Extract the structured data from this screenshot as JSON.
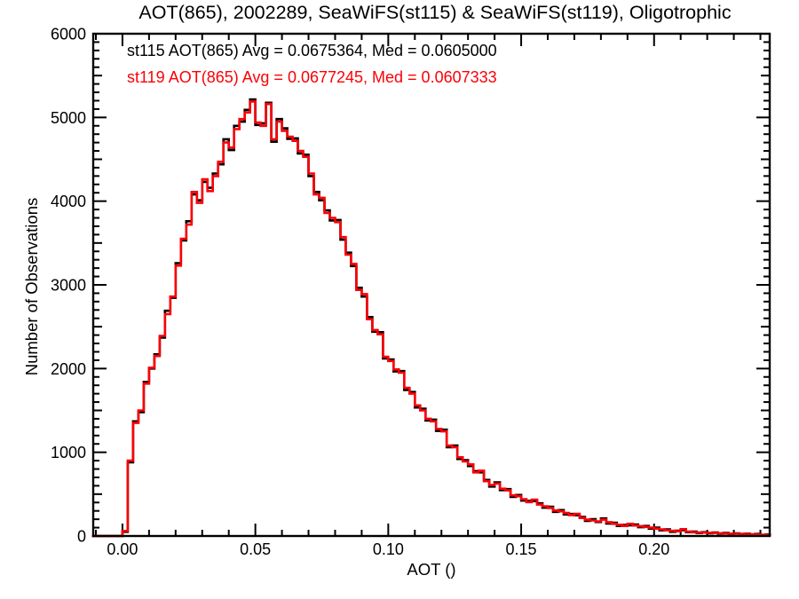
{
  "window": {
    "background": "#ffffff"
  },
  "chart_data": {
    "type": "line",
    "style": "step-histogram",
    "title": "AOT(865), 2002289, SeaWiFS(st115) & SeaWiFS(st119), Oligotrophic",
    "xlabel": "AOT ()",
    "ylabel": "Number of Observations",
    "xlim": [
      -0.011,
      0.2435
    ],
    "ylim": [
      0,
      6000
    ],
    "grid": false,
    "legend_position": "top-left-inside",
    "x_tick_values": [
      0.0,
      0.05,
      0.1,
      0.15,
      0.2
    ],
    "x_tick_labels": [
      "0.00",
      "0.05",
      "0.10",
      "0.15",
      "0.20"
    ],
    "x_minor_step": 0.01,
    "y_tick_values": [
      0,
      1000,
      2000,
      3000,
      4000,
      5000,
      6000
    ],
    "y_tick_labels": [
      "0",
      "1000",
      "2000",
      "3000",
      "4000",
      "5000",
      "6000"
    ],
    "y_minor_step": 100,
    "bin_start": -0.012,
    "bin_width": 0.002,
    "series": [
      {
        "name": "st115",
        "color": "#000000",
        "legend": "st115 AOT(865) Avg = 0.0675364, Med = 0.0605000",
        "avg": 0.0675364,
        "med": 0.0605,
        "values": [
          0,
          0,
          0,
          0,
          0,
          0,
          50,
          880,
          1370,
          1480,
          1840,
          2000,
          2170,
          2370,
          2690,
          2845,
          3260,
          3530,
          3760,
          4080,
          4010,
          4230,
          4160,
          4330,
          4440,
          4740,
          4610,
          4900,
          4950,
          5090,
          5215,
          4910,
          4930,
          5175,
          4710,
          4980,
          4870,
          4745,
          4750,
          4570,
          4555,
          4300,
          4110,
          4010,
          3890,
          3770,
          3775,
          3540,
          3385,
          3225,
          2965,
          2860,
          2615,
          2440,
          2435,
          2120,
          2110,
          1965,
          1970,
          1745,
          1720,
          1535,
          1520,
          1380,
          1390,
          1255,
          1270,
          1060,
          1080,
          920,
          905,
          835,
          775,
          760,
          670,
          590,
          640,
          548,
          560,
          468,
          490,
          423,
          420,
          418,
          390,
          338,
          350,
          288,
          310,
          258,
          263,
          248,
          228,
          180,
          200,
          168,
          210,
          148,
          158,
          120,
          133,
          128,
          138,
          105,
          120,
          88,
          100,
          68,
          80,
          50,
          64,
          70,
          46,
          52,
          36,
          46,
          32,
          42,
          28,
          36,
          24,
          32,
          20,
          28,
          16,
          24,
          12,
          18
        ]
      },
      {
        "name": "st119",
        "color": "#fb0006",
        "legend": "st119 AOT(865) Avg = 0.0677245, Med = 0.0607333",
        "avg": 0.0677245,
        "med": 0.0607333,
        "values": [
          0,
          0,
          0,
          0,
          0,
          0,
          60,
          900,
          1350,
          1500,
          1820,
          2010,
          2150,
          2390,
          2650,
          2860,
          3230,
          3550,
          3720,
          4110,
          3980,
          4260,
          4120,
          4300,
          4470,
          4700,
          4640,
          4860,
          4980,
          5060,
          5190,
          4940,
          4900,
          5160,
          4740,
          4950,
          4840,
          4770,
          4720,
          4600,
          4530,
          4330,
          4080,
          4040,
          3860,
          3800,
          3750,
          3570,
          3360,
          3250,
          2940,
          2890,
          2590,
          2460,
          2410,
          2140,
          2090,
          1990,
          1950,
          1770,
          1700,
          1560,
          1500,
          1400,
          1370,
          1280,
          1250,
          1080,
          1060,
          940,
          890,
          855,
          760,
          780,
          655,
          610,
          625,
          565,
          545,
          485,
          475,
          440,
          405,
          435,
          375,
          355,
          335,
          305,
          295,
          275,
          250,
          265,
          215,
          195,
          185,
          175,
          195,
          165,
          145,
          135,
          120,
          145,
          125,
          118,
          108,
          100,
          88,
          80,
          68,
          62,
          56,
          82,
          52,
          45,
          42,
          40,
          38,
          36,
          33,
          30,
          28,
          26,
          25,
          22,
          20,
          18,
          15,
          12
        ]
      }
    ]
  }
}
